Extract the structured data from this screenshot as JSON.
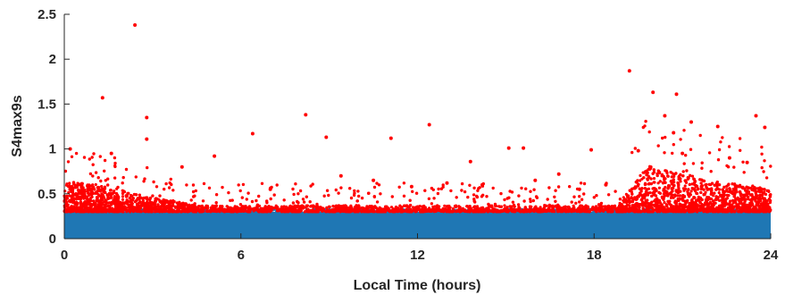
{
  "chart_data": {
    "type": "scatter",
    "title": "",
    "xlabel": "Local Time (hours)",
    "ylabel": "S4max9s",
    "xlim": [
      0,
      24
    ],
    "ylim": [
      0,
      2.5
    ],
    "x_ticks": [
      "0",
      "6",
      "12",
      "18",
      "24"
    ],
    "y_ticks": [
      "0",
      "0.5",
      "1",
      "1.5",
      "2",
      "2.5"
    ],
    "grid": false,
    "legend": "none",
    "threshold": 0.3,
    "series": [
      {
        "color": "#1f77b4",
        "description_of_values": "dense band of points from 0 to 0.3 across all local times",
        "points": [
          [
            0.1,
            0.15
          ],
          [
            3.0,
            0.2
          ],
          [
            6.0,
            0.25
          ],
          [
            9.0,
            0.18
          ],
          [
            12.0,
            0.22
          ],
          [
            15.0,
            0.2
          ],
          [
            18.0,
            0.27
          ],
          [
            21.0,
            0.2
          ],
          [
            23.9,
            0.15
          ]
        ]
      },
      {
        "color": "#ff0000",
        "points": [
          [
            2.4,
            2.38
          ],
          [
            19.2,
            1.87
          ],
          [
            1.3,
            1.57
          ],
          [
            20.0,
            1.63
          ],
          [
            20.8,
            1.61
          ],
          [
            2.8,
            1.35
          ],
          [
            8.2,
            1.38
          ],
          [
            23.5,
            1.37
          ],
          [
            12.4,
            1.27
          ],
          [
            6.4,
            1.17
          ],
          [
            11.1,
            1.12
          ],
          [
            8.9,
            1.13
          ],
          [
            2.8,
            1.11
          ],
          [
            15.1,
            1.01
          ],
          [
            15.6,
            1.01
          ],
          [
            0.2,
            1.0
          ],
          [
            17.9,
            0.99
          ],
          [
            20.4,
            1.37
          ],
          [
            21.3,
            1.3
          ],
          [
            22.2,
            1.25
          ],
          [
            20.7,
            1.18
          ],
          [
            23.8,
            1.24
          ],
          [
            1.6,
            0.95
          ],
          [
            5.1,
            0.92
          ],
          [
            13.8,
            0.86
          ],
          [
            16.8,
            0.72
          ],
          [
            9.4,
            0.7
          ],
          [
            4.0,
            0.8
          ],
          [
            10.5,
            0.65
          ],
          [
            14.2,
            0.6
          ],
          [
            7.0,
            0.55
          ],
          [
            11.8,
            0.58
          ],
          [
            13.0,
            0.62
          ],
          [
            16.0,
            0.65
          ],
          [
            17.5,
            0.55
          ],
          [
            18.4,
            0.6
          ],
          [
            19.5,
            0.98
          ],
          [
            21.0,
            0.95
          ],
          [
            22.6,
            0.9
          ],
          [
            23.2,
            0.85
          ]
        ]
      }
    ]
  }
}
